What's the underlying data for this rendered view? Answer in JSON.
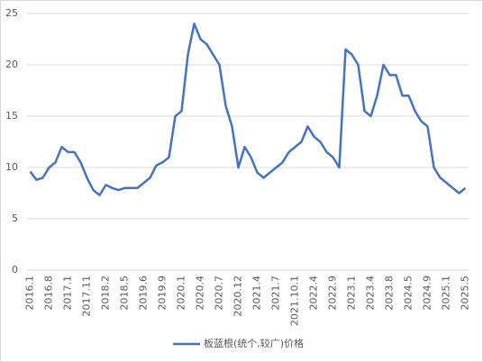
{
  "chart_data": {
    "type": "line",
    "categories": [
      "2016.1",
      null,
      null,
      "2016.8",
      null,
      null,
      "2017.1",
      null,
      null,
      "2017.11",
      null,
      null,
      "2018.2",
      null,
      null,
      "2018.5",
      null,
      null,
      "2019.6",
      null,
      null,
      "2019.9",
      null,
      null,
      "2020.1",
      null,
      null,
      "2020.4",
      null,
      null,
      "2020.7",
      null,
      null,
      "2020.12",
      null,
      null,
      "2021.4",
      null,
      null,
      "2021.7",
      null,
      null,
      "2021.10.1",
      null,
      null,
      "2022.4",
      null,
      null,
      "2022.9",
      null,
      null,
      "2023.1",
      null,
      null,
      "2023.4",
      null,
      null,
      "2023.8",
      null,
      null,
      "2024.5",
      null,
      null,
      "2024.9",
      null,
      null,
      "2025.1",
      null,
      null,
      "2025.5"
    ],
    "series": [
      {
        "name": "板蓝根(统个,较广)价格",
        "color": "#4472c4",
        "values": [
          9.6,
          8.8,
          9.0,
          10.0,
          10.5,
          12.0,
          11.5,
          11.5,
          10.5,
          9.0,
          7.8,
          7.3,
          8.3,
          8.0,
          7.8,
          8.0,
          8.0,
          8.0,
          8.5,
          9.0,
          10.2,
          10.5,
          11.0,
          15.0,
          15.5,
          21.0,
          24.0,
          22.5,
          22.0,
          21.0,
          20.0,
          16.0,
          14.0,
          10.0,
          12.0,
          11.0,
          9.5,
          9.0,
          9.5,
          10.0,
          10.5,
          11.5,
          12.0,
          12.5,
          14.0,
          13.0,
          12.5,
          11.5,
          11.0,
          10.0,
          21.5,
          21.0,
          20.0,
          15.5,
          15.0,
          17.0,
          20.0,
          19.0,
          19.0,
          17.0,
          17.0,
          15.5,
          14.5,
          14.0,
          10.0,
          9.0,
          8.5,
          8.0,
          7.5,
          8.0
        ]
      }
    ],
    "ylim": [
      0,
      25
    ],
    "yticks": [
      0,
      5,
      10,
      15,
      20,
      25
    ],
    "grid": true
  }
}
